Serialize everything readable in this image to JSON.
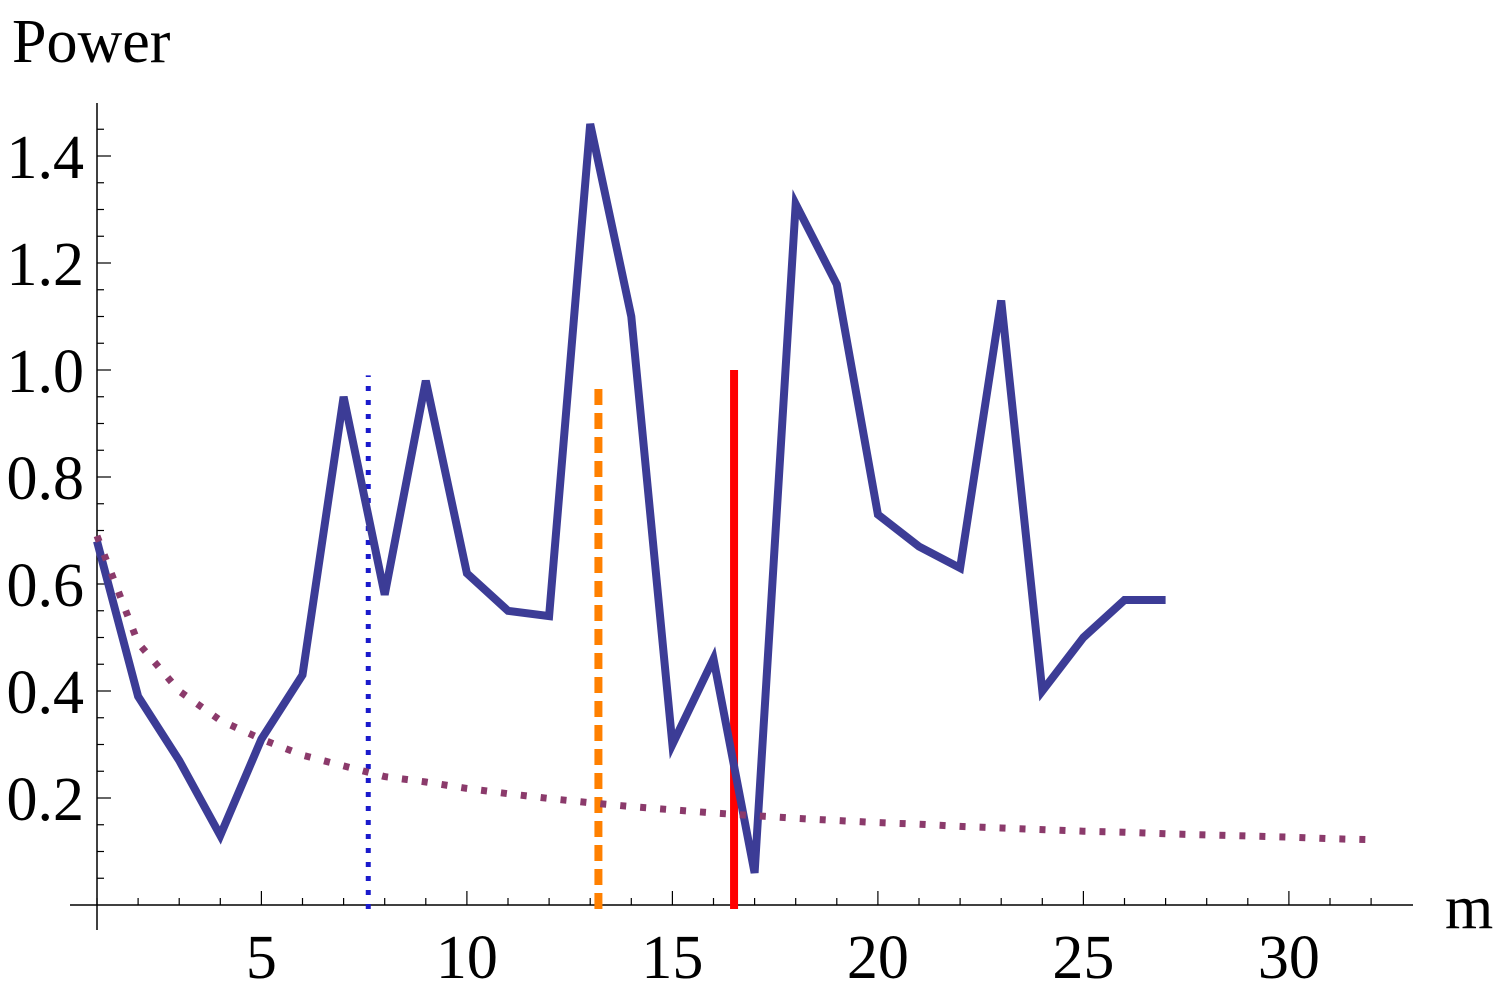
{
  "chart_data": {
    "type": "line",
    "ylabel": "Power",
    "xlabel": "m",
    "xlim": [
      0.3,
      32.7
    ],
    "ylim": [
      0,
      1.5
    ],
    "x_ticks": [
      5,
      10,
      15,
      20,
      25,
      30
    ],
    "y_ticks": [
      0.2,
      0.4,
      0.6,
      0.8,
      1.0,
      1.2,
      1.4
    ],
    "x_tick_labels": [
      "5",
      "10",
      "15",
      "20",
      "25",
      "30"
    ],
    "y_tick_labels": [
      "0.2",
      "0.4",
      "0.6",
      "0.8",
      "1.0",
      "1.2",
      "1.4"
    ],
    "grid": false,
    "legend": "none",
    "series": [
      {
        "style": "solid",
        "color": "#3c3c96",
        "x": [
          1,
          2,
          3,
          4,
          5,
          6,
          7,
          8,
          9,
          10,
          11,
          12,
          13,
          14,
          15,
          16,
          17,
          18,
          19,
          20,
          21,
          22,
          23,
          24,
          25,
          26,
          27
        ],
        "y": [
          0.68,
          0.39,
          0.27,
          0.13,
          0.31,
          0.43,
          0.95,
          0.58,
          0.98,
          0.62,
          0.55,
          0.54,
          1.46,
          1.1,
          0.3,
          0.46,
          0.06,
          1.31,
          1.16,
          0.73,
          0.67,
          0.63,
          1.13,
          0.4,
          0.5,
          0.57,
          0.57
        ]
      },
      {
        "style": "dotted",
        "color": "#8b3a6b",
        "x": [
          1,
          2,
          3,
          4,
          5,
          6,
          7,
          8,
          9,
          10,
          11,
          12,
          13,
          14,
          15,
          16,
          17,
          18,
          19,
          20,
          21,
          22,
          23,
          24,
          25,
          26,
          27,
          28,
          29,
          30,
          31,
          32
        ],
        "y": [
          0.69,
          0.49,
          0.4,
          0.345,
          0.31,
          0.28,
          0.26,
          0.24,
          0.23,
          0.218,
          0.208,
          0.199,
          0.191,
          0.184,
          0.178,
          0.172,
          0.167,
          0.162,
          0.158,
          0.154,
          0.151,
          0.147,
          0.144,
          0.141,
          0.138,
          0.136,
          0.133,
          0.131,
          0.129,
          0.127,
          0.124,
          0.122
        ]
      }
    ],
    "vlines": [
      {
        "x": 7.6,
        "y_top": 0.99,
        "style": "dotted",
        "color": "#1a1acc"
      },
      {
        "x": 13.2,
        "y_top": 0.97,
        "style": "dashed",
        "color": "#ff8000"
      },
      {
        "x": 16.5,
        "y_top": 1.0,
        "style": "solid",
        "color": "#ff0000"
      }
    ]
  }
}
